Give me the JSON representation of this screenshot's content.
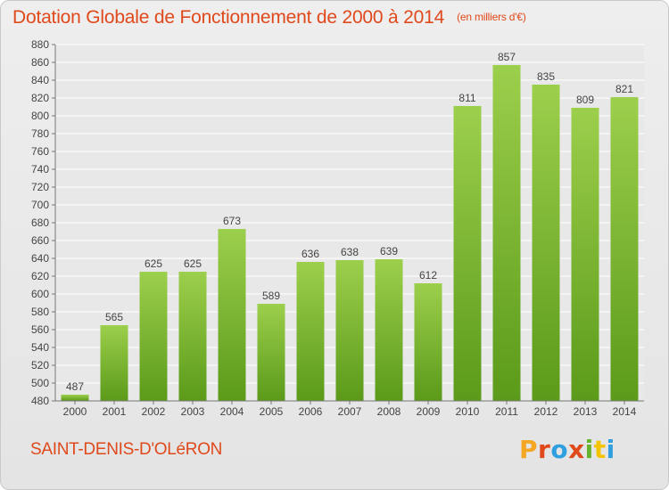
{
  "header": {
    "title": "Dotation Globale de Fonctionnement de 2000 à 2014",
    "unit": "(en milliers d'€)"
  },
  "footer": {
    "commune": "SAINT-DENIS-D'OLéRON",
    "brand": "Proxiti",
    "brand_colors": [
      "#f5a623",
      "#e0491b",
      "#2f9fe0",
      "#e0491b",
      "#66b32e",
      "#f5c400",
      "#2f9fe0"
    ]
  },
  "colors": {
    "title": "#e0491b",
    "bar_top": "#9ccf4c",
    "bar_bottom": "#5b9a1a",
    "grid": "#ffffff",
    "text": "#444444"
  },
  "chart_data": {
    "type": "bar",
    "title": "Dotation Globale de Fonctionnement de 2000 à 2014",
    "subtitle": "(en milliers d'€)",
    "categories": [
      "2000",
      "2001",
      "2002",
      "2003",
      "2004",
      "2005",
      "2006",
      "2007",
      "2008",
      "2009",
      "2010",
      "2011",
      "2012",
      "2013",
      "2014"
    ],
    "values": [
      487,
      565,
      625,
      625,
      673,
      589,
      636,
      638,
      639,
      612,
      811,
      857,
      835,
      809,
      821
    ],
    "ylim": [
      480,
      880
    ],
    "yticks": [
      480,
      500,
      520,
      540,
      560,
      580,
      600,
      620,
      640,
      660,
      680,
      700,
      720,
      740,
      760,
      780,
      800,
      820,
      840,
      860,
      880
    ],
    "grid": true,
    "xlabel": "",
    "ylabel": ""
  }
}
